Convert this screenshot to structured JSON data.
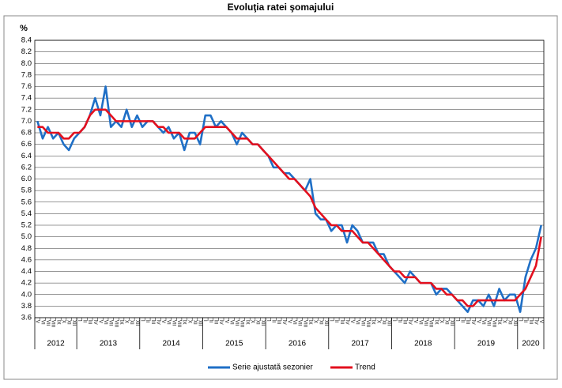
{
  "chart_data": {
    "type": "line",
    "title": "Evoluţia ratei şomajului",
    "y_label": "%",
    "categories": [
      "V",
      "VI",
      "VII",
      "VIII",
      "IX",
      "X",
      "XI",
      "XII",
      "I",
      "II",
      "III",
      "IV",
      "V",
      "VI",
      "VII",
      "VIII",
      "IX",
      "X",
      "XI",
      "XII",
      "I",
      "II",
      "III",
      "IV",
      "V",
      "VI",
      "VII",
      "VIII",
      "IX",
      "X",
      "XI",
      "XII",
      "I",
      "II",
      "III",
      "IV",
      "V",
      "VI",
      "VII",
      "VIII",
      "IX",
      "X",
      "XI",
      "XII",
      "I",
      "II",
      "III",
      "IV",
      "V",
      "VI",
      "VII",
      "VIII",
      "IX",
      "X",
      "XI",
      "XII",
      "I",
      "II",
      "III",
      "IV",
      "V",
      "VI",
      "VII",
      "VIII",
      "IX",
      "X",
      "XI",
      "XII",
      "I",
      "II",
      "III",
      "IV",
      "V",
      "VI",
      "VII",
      "VIII",
      "IX",
      "X",
      "XI",
      "XII",
      "I",
      "II",
      "III",
      "IV",
      "V",
      "VI",
      "VII",
      "VIII",
      "IX",
      "X",
      "XI",
      "XII",
      "I",
      "II",
      "III",
      "IV",
      "V"
    ],
    "years": [
      "2012",
      "2013",
      "2014",
      "2015",
      "2016",
      "2017",
      "2018",
      "2019",
      "2020"
    ],
    "series": [
      {
        "name": "Serie ajustată sezonier",
        "color": "#1f6fc6",
        "values": [
          7.0,
          6.7,
          6.9,
          6.7,
          6.8,
          6.6,
          6.5,
          6.7,
          6.8,
          6.9,
          7.1,
          7.4,
          7.1,
          7.6,
          6.9,
          7.0,
          6.9,
          7.2,
          6.9,
          7.1,
          6.9,
          7.0,
          7.0,
          6.9,
          6.8,
          6.9,
          6.7,
          6.8,
          6.5,
          6.8,
          6.8,
          6.6,
          7.1,
          7.1,
          6.9,
          7.0,
          6.9,
          6.8,
          6.6,
          6.8,
          6.7,
          6.6,
          6.6,
          6.5,
          6.4,
          6.2,
          6.2,
          6.1,
          6.1,
          6.0,
          5.9,
          5.8,
          6.0,
          5.4,
          5.3,
          5.3,
          5.1,
          5.2,
          5.2,
          4.9,
          5.2,
          5.1,
          4.9,
          4.9,
          4.9,
          4.7,
          4.7,
          4.5,
          4.4,
          4.3,
          4.2,
          4.4,
          4.3,
          4.2,
          4.2,
          4.2,
          4.0,
          4.1,
          4.1,
          4.0,
          3.9,
          3.8,
          3.7,
          3.9,
          3.9,
          3.8,
          4.0,
          3.8,
          4.1,
          3.9,
          4.0,
          4.0,
          3.7,
          4.3,
          4.6,
          4.8,
          5.2
        ]
      },
      {
        "name": "Trend",
        "color": "#e3101e",
        "values": [
          6.9,
          6.9,
          6.8,
          6.8,
          6.8,
          6.7,
          6.7,
          6.8,
          6.8,
          6.9,
          7.1,
          7.2,
          7.2,
          7.2,
          7.1,
          7.0,
          7.0,
          7.0,
          7.0,
          7.0,
          7.0,
          7.0,
          7.0,
          6.9,
          6.9,
          6.8,
          6.8,
          6.8,
          6.7,
          6.7,
          6.7,
          6.8,
          6.9,
          6.9,
          6.9,
          6.9,
          6.9,
          6.8,
          6.7,
          6.7,
          6.7,
          6.6,
          6.6,
          6.5,
          6.4,
          6.3,
          6.2,
          6.1,
          6.0,
          6.0,
          5.9,
          5.8,
          5.7,
          5.5,
          5.4,
          5.3,
          5.2,
          5.2,
          5.1,
          5.1,
          5.1,
          5.0,
          4.9,
          4.9,
          4.8,
          4.7,
          4.6,
          4.5,
          4.4,
          4.4,
          4.3,
          4.3,
          4.3,
          4.2,
          4.2,
          4.2,
          4.1,
          4.1,
          4.0,
          4.0,
          3.9,
          3.9,
          3.8,
          3.8,
          3.9,
          3.9,
          3.9,
          3.9,
          3.9,
          3.9,
          3.9,
          3.9,
          4.0,
          4.1,
          4.3,
          4.5,
          5.0
        ]
      }
    ],
    "ylim": [
      3.6,
      8.4
    ],
    "yticks": [
      3.6,
      3.8,
      {
        "value": 4.0,
        "label": "4.0"
      },
      4.2,
      4.4,
      4.6,
      4.8,
      {
        "value": 5.0,
        "label": "5.0"
      },
      5.2,
      5.4,
      5.6,
      5.8,
      {
        "value": 6.0,
        "label": "6.0"
      },
      6.2,
      6.4,
      6.6,
      6.8,
      {
        "value": 7.0,
        "label": "7.0"
      },
      7.2,
      7.4,
      7.6,
      7.8,
      {
        "value": 8.0,
        "label": "8.0"
      },
      8.2,
      8.4
    ],
    "grid": true,
    "legend": "bottom"
  }
}
